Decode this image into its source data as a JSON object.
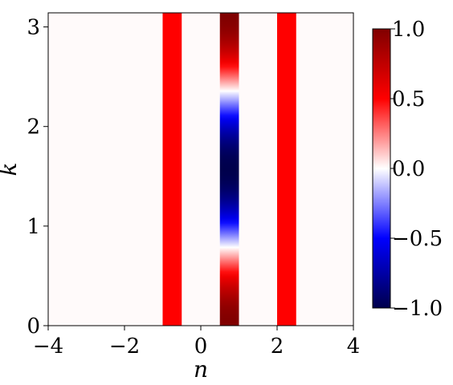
{
  "chart_data": {
    "type": "heatmap",
    "title": "",
    "xlabel": "n",
    "ylabel": "k",
    "xlim": [
      -4,
      4
    ],
    "ylim": [
      0,
      3.14159
    ],
    "x_ticks": [
      "−4",
      "−2",
      "0",
      "2",
      "4"
    ],
    "x_tick_values": [
      -4,
      -2,
      0,
      2,
      4
    ],
    "y_ticks": [
      "0",
      "1",
      "2",
      "3"
    ],
    "y_tick_values": [
      0,
      1,
      2,
      3
    ],
    "background_value": 0.0,
    "constant_bands": [
      {
        "x_range": [
          -1.0,
          -0.5
        ],
        "value": 0.5
      },
      {
        "x_range": [
          2.0,
          2.5
        ],
        "value": 0.5
      }
    ],
    "varying_band": {
      "x_range": [
        0.5,
        1.0
      ],
      "function": "cos(2k)",
      "samples": [
        {
          "k": 0.0,
          "value": 1.0
        },
        {
          "k": 0.39,
          "value": 0.7
        },
        {
          "k": 0.79,
          "value": 0.0
        },
        {
          "k": 1.18,
          "value": -0.7
        },
        {
          "k": 1.57,
          "value": -1.0
        },
        {
          "k": 1.96,
          "value": -0.7
        },
        {
          "k": 2.36,
          "value": 0.0
        },
        {
          "k": 2.75,
          "value": 0.7
        },
        {
          "k": 3.14,
          "value": 1.0
        }
      ]
    },
    "colorbar": {
      "colormap": "seismic",
      "range": [
        -1.0,
        1.0
      ],
      "ticks": [
        "−1.0",
        "−0.5",
        "0.0",
        "0.5",
        "1.0"
      ],
      "tick_values": [
        -1.0,
        -0.5,
        0.0,
        0.5,
        1.0
      ]
    },
    "colors": {
      "seismic_min": "#00004c",
      "seismic_blue": "#0000ff",
      "seismic_mid": "#ffffff",
      "seismic_red": "#ff0000",
      "seismic_max": "#800000",
      "background": "#fffafa"
    }
  }
}
